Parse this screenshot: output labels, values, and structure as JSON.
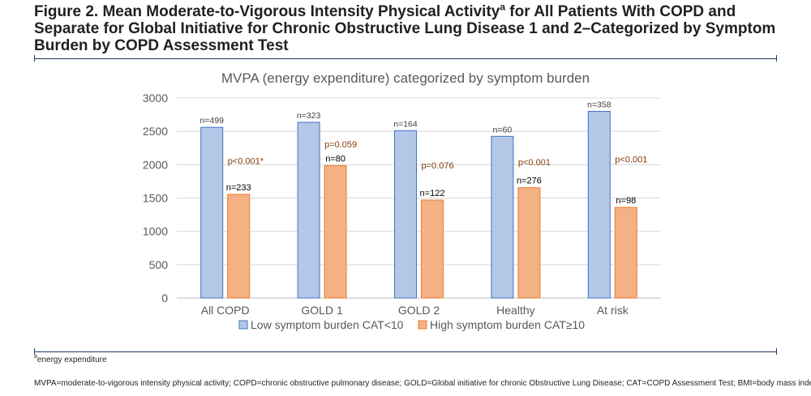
{
  "figure": {
    "title_part1": "Figure 2. Mean Moderate-to-Vigorous Intensity Physical Activity",
    "title_sup": "a",
    "title_part2": " for All Patients With COPD and Separate for Global Initiative for Chronic Obstructive Lung Disease 1 and 2–Categorized by Symptom Burden by COPD Assessment Test"
  },
  "footnote": {
    "sup": "a",
    "text": "energy expenditure"
  },
  "abbreviations": "MVPA=moderate-to-vigorous intensity physical activity; COPD=chronic obstructive pulmonary disease; GOLD=Global initiative for chronic Obstructive Lung Disease; CAT=COPD Assessment Test; BMI=body mass index",
  "chart_data": {
    "type": "bar",
    "title": "MVPA (energy expenditure) categorized by symptom burden",
    "xlabel": "",
    "ylabel": "",
    "ylim": [
      0,
      3000
    ],
    "yticks": [
      0,
      500,
      1000,
      1500,
      2000,
      2500,
      3000
    ],
    "grid": true,
    "legend_position": "bottom",
    "categories": [
      "All COPD",
      "GOLD 1",
      "GOLD 2",
      "Healthy",
      "At risk"
    ],
    "series": [
      {
        "name": "Low symptom burden CAT<10",
        "color": "#b4c7e7",
        "edge": "#4472c4",
        "values": [
          2560,
          2635,
          2510,
          2425,
          2800
        ],
        "labels": [
          "n=499",
          "n=323",
          "n=164",
          "n=60",
          "n=358"
        ]
      },
      {
        "name": "High symptom burden CAT≥10",
        "color": "#f4b183",
        "edge": "#ed7d31",
        "values": [
          1555,
          1985,
          1470,
          1655,
          1360
        ],
        "labels": [
          "n=233",
          "n=80",
          "n=122",
          "n=276",
          "n=98"
        ]
      }
    ],
    "p_values": [
      "p<0.001*",
      "p=0.059",
      "p=0.076",
      "p<0.001",
      "p<0.001"
    ],
    "p_color": "#843c0c"
  }
}
